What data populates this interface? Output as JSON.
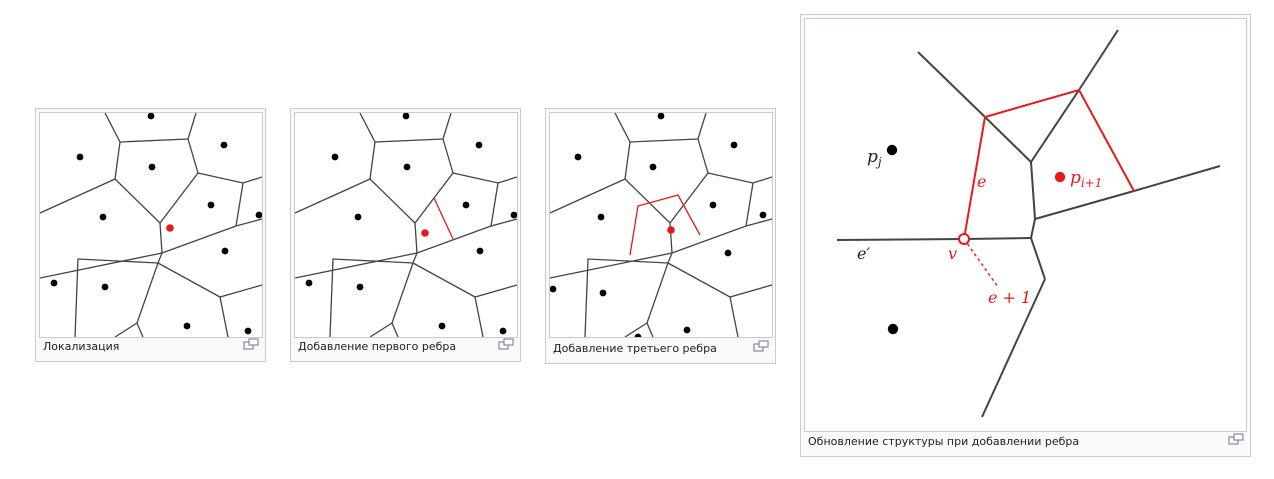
{
  "figures": [
    {
      "id": "localization",
      "caption": "Локализация"
    },
    {
      "id": "first-edge",
      "caption": "Добавление первого ребра"
    },
    {
      "id": "third-edge",
      "caption": "Добавление третьего ребра"
    },
    {
      "id": "structure-update",
      "caption": "Обновление структуры при добавлении ребра",
      "labels": {
        "p_j": "p",
        "p_j_sub": "j",
        "p_i1": "p",
        "p_i1_sub": "i+1",
        "e": "e",
        "e_prime": "e′",
        "v": "v",
        "e_plus_1": "e + 1"
      }
    }
  ],
  "colors": {
    "edge": "#444444",
    "highlight": "#e8191c",
    "site": "#000000",
    "caption_bg": "#f8f9fa",
    "border": "#c8ccd1"
  },
  "icons": {
    "enlarge": "magnify-icon"
  }
}
